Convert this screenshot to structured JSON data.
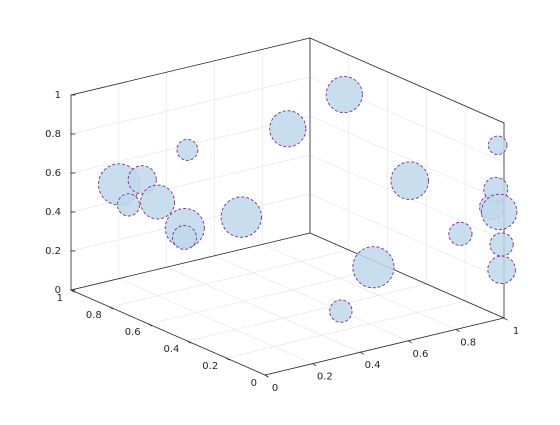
{
  "chart_data": {
    "type": "scatter",
    "projection": "3d",
    "title": "",
    "xlabel": "",
    "ylabel": "",
    "zlabel": "",
    "xlim": [
      0,
      1
    ],
    "ylim": [
      0,
      1
    ],
    "zlim": [
      0,
      1
    ],
    "x_ticks": [
      "0",
      "0.2",
      "0.4",
      "0.6",
      "0.8",
      "1"
    ],
    "y_ticks": [
      "0",
      "0.2",
      "0.4",
      "0.6",
      "0.8",
      "1"
    ],
    "z_ticks": [
      "0",
      "0.2",
      "0.4",
      "0.6",
      "0.8",
      "1"
    ],
    "grid": true,
    "marker_face_color": "#bed8ec",
    "marker_edge_color": "#7e2f8e",
    "marker_edge_style": "dashed",
    "points": [
      {
        "x": 0.03,
        "y": 0.67,
        "z": 0.7,
        "size": 0.34
      },
      {
        "x": 0.2,
        "y": 0.8,
        "z": 0.48,
        "size": 0.5
      },
      {
        "x": 0.15,
        "y": 0.6,
        "z": 0.4,
        "size": 0.22
      },
      {
        "x": 0.12,
        "y": 0.9,
        "z": 0.55,
        "size": 0.7
      },
      {
        "x": 0.2,
        "y": 0.95,
        "z": 0.4,
        "size": 0.17
      },
      {
        "x": 0.33,
        "y": 0.82,
        "z": 0.3,
        "size": 0.64
      },
      {
        "x": 0.55,
        "y": 0.8,
        "z": 0.3,
        "size": 0.68
      },
      {
        "x": 0.0,
        "y": 0.4,
        "z": 0.98,
        "size": 0.14
      },
      {
        "x": 0.68,
        "y": 0.72,
        "z": 0.75,
        "size": 0.56
      },
      {
        "x": 0.9,
        "y": 0.7,
        "z": 0.87,
        "size": 0.56
      },
      {
        "x": 0.93,
        "y": 0.4,
        "z": 0.55,
        "size": 0.6
      },
      {
        "x": 0.99,
        "y": 0.02,
        "z": 0.88,
        "size": 0.07
      },
      {
        "x": 0.98,
        "y": 0.0,
        "z": 0.55,
        "size": 0.54
      },
      {
        "x": 0.48,
        "y": 0.2,
        "z": 0.1,
        "size": 0.18
      },
      {
        "x": 0.9,
        "y": 0.55,
        "z": 0.05,
        "size": 0.7
      },
      {
        "x": 0.98,
        "y": 0.2,
        "z": 0.35,
        "size": 0.2
      },
      {
        "x": 0.99,
        "y": 0.05,
        "z": 0.55,
        "size": 0.24
      },
      {
        "x": 0.99,
        "y": 0.03,
        "z": 0.65,
        "size": 0.22
      },
      {
        "x": 0.99,
        "y": 0.0,
        "z": 0.38,
        "size": 0.2
      },
      {
        "x": 0.99,
        "y": 0.0,
        "z": 0.25,
        "size": 0.32
      }
    ]
  }
}
